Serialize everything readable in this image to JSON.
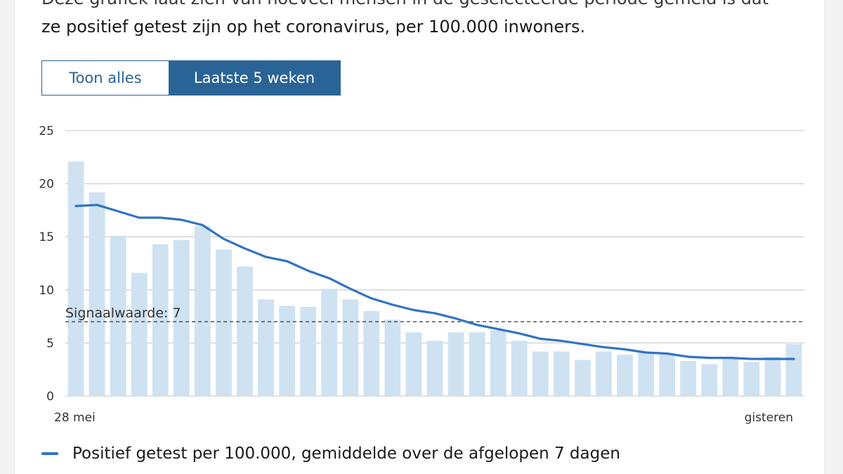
{
  "description": {
    "line1": "Deze grafiek laat zien van hoeveel mensen in de geselecteerde periode gemeld is dat",
    "line2": "ze positief getest zijn op het coronavirus, per 100.000 inwoners."
  },
  "toggle": {
    "all_label": "Toon alles",
    "weeks_label": "Laatste 5 weken",
    "active": "weeks"
  },
  "colors": {
    "bar": "#cfe2f2",
    "line": "#3273c3",
    "grid": "#d0d0d0",
    "active_toggle": "#2a6496"
  },
  "chart_data": {
    "type": "bar",
    "ylim": [
      0,
      25
    ],
    "yticks": [
      0,
      5,
      10,
      15,
      20,
      25
    ],
    "x_start_label": "28 mei",
    "x_end_label": "gisteren",
    "grid": true,
    "values": [
      22.1,
      19.2,
      15.1,
      11.6,
      14.3,
      14.7,
      16.0,
      13.8,
      12.2,
      9.1,
      8.5,
      8.4,
      10.1,
      9.1,
      8.0,
      7.2,
      6.0,
      5.2,
      6.0,
      6.0,
      6.2,
      5.2,
      4.2,
      4.2,
      3.4,
      4.2,
      3.9,
      4.1,
      3.9,
      3.3,
      3.0,
      3.5,
      3.2,
      3.7,
      4.9
    ],
    "average": [
      17.9,
      18.0,
      17.4,
      16.8,
      16.8,
      16.6,
      16.1,
      14.8,
      13.9,
      13.1,
      12.7,
      11.8,
      11.1,
      10.1,
      9.2,
      8.6,
      8.1,
      7.8,
      7.3,
      6.7,
      6.3,
      5.9,
      5.4,
      5.2,
      4.9,
      4.6,
      4.4,
      4.1,
      4.0,
      3.7,
      3.6,
      3.6,
      3.5,
      3.5,
      3.5
    ],
    "threshold": {
      "value": 7,
      "label": "Signaalwaarde: 7"
    },
    "legend": "Positief getest per 100.000, gemiddelde over de afgelopen 7 dagen"
  }
}
